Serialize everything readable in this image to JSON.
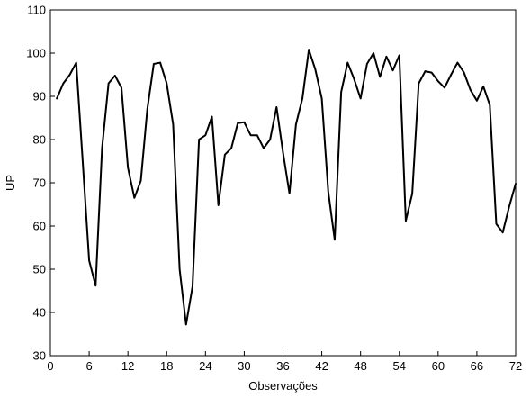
{
  "chart_data": {
    "type": "line",
    "title": "",
    "xlabel": "Observações",
    "ylabel": "UP",
    "xlim": [
      0,
      72
    ],
    "ylim": [
      30,
      110
    ],
    "xticks": [
      0,
      6,
      12,
      18,
      24,
      30,
      36,
      42,
      48,
      54,
      60,
      66,
      72
    ],
    "yticks": [
      30,
      40,
      50,
      60,
      70,
      80,
      90,
      100,
      110
    ],
    "grid": false,
    "legend": "none",
    "line_color": "#000000",
    "series": [
      {
        "x": [
          1,
          2,
          3,
          4,
          5,
          6,
          7,
          8,
          9,
          10,
          11,
          12,
          13,
          14,
          15,
          16,
          17,
          18,
          19,
          20,
          21,
          22,
          23,
          24,
          25,
          26,
          27,
          28,
          29,
          30,
          31,
          32,
          33,
          34,
          35,
          36,
          37,
          38,
          39,
          40,
          41,
          42,
          43,
          44,
          45,
          46,
          47,
          48,
          49,
          50,
          51,
          52,
          53,
          54,
          55,
          56,
          57,
          58,
          59,
          60,
          61,
          62,
          63,
          64,
          65,
          66,
          67,
          68,
          69,
          70,
          71,
          72
        ],
        "values": [
          89.5,
          93.0,
          95.0,
          97.8,
          75.0,
          52.0,
          46.2,
          78.0,
          93.0,
          94.8,
          92.0,
          73.5,
          66.5,
          70.5,
          87.0,
          97.5,
          97.8,
          93.0,
          83.5,
          50.0,
          37.2,
          46.0,
          80.0,
          81.0,
          85.3,
          64.8,
          76.5,
          78.0,
          83.8,
          84.0,
          81.0,
          81.0,
          78.0,
          80.0,
          87.5,
          77.0,
          67.5,
          83.5,
          89.5,
          100.8,
          96.2,
          89.5,
          68.0,
          56.8,
          91.0,
          97.8,
          94.0,
          89.5,
          97.5,
          100.0,
          94.5,
          99.2,
          96.0,
          99.5,
          61.2,
          67.5,
          93.0,
          95.8,
          95.5,
          93.5,
          92.0,
          95.0,
          97.8,
          95.5,
          91.5,
          89.0,
          92.3,
          88.0,
          60.5,
          58.5,
          64.5,
          69.8
        ]
      }
    ]
  }
}
